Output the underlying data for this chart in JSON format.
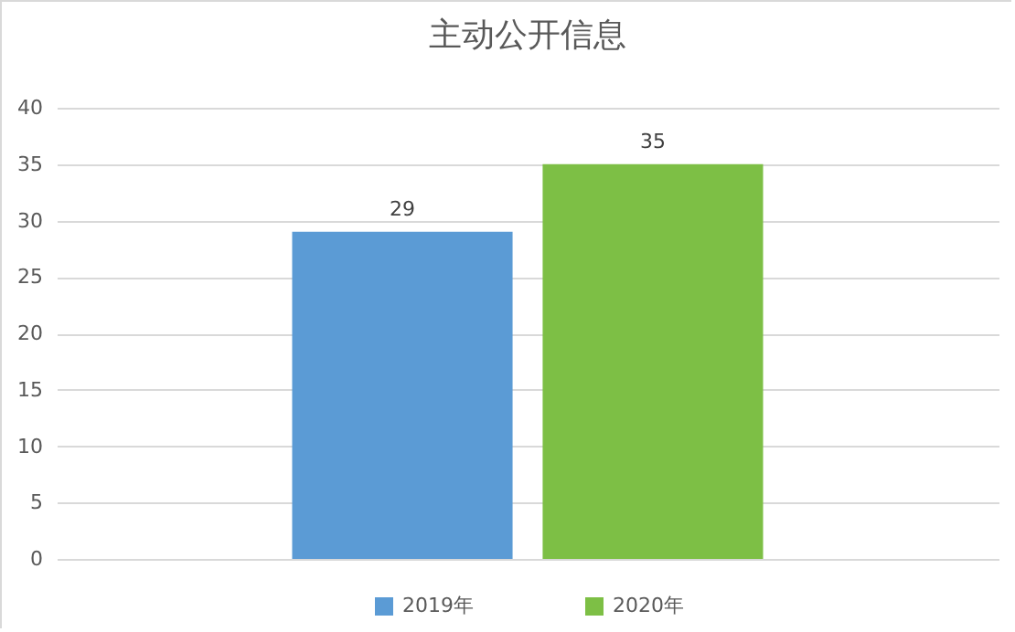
{
  "chart_data": {
    "type": "bar",
    "title": "主动公开信息",
    "categories": [
      null
    ],
    "series": [
      {
        "name": "2019年",
        "color": "#5b9bd5",
        "values": [
          29
        ]
      },
      {
        "name": "2020年",
        "color": "#7dbf45",
        "values": [
          35
        ]
      }
    ],
    "ylim": [
      0,
      40
    ],
    "yticks": [
      0,
      5,
      10,
      15,
      20,
      25,
      30,
      35,
      40
    ],
    "grid": "y",
    "legend": "bottom",
    "data_labels": true
  }
}
